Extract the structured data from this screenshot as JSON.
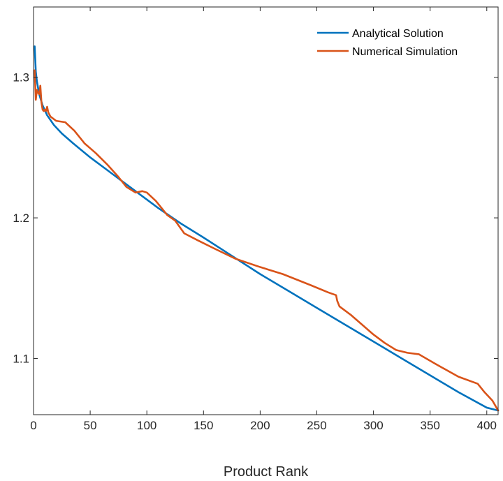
{
  "chart_data": {
    "type": "line",
    "title": "",
    "xlabel": "Product Rank",
    "ylabel": "",
    "xlim": [
      0,
      410
    ],
    "ylim": [
      1.06,
      1.35
    ],
    "x_ticks": [
      0,
      50,
      100,
      150,
      200,
      250,
      300,
      350,
      400
    ],
    "x_tick_labels": [
      "0",
      "50",
      "100",
      "150",
      "200",
      "250",
      "300",
      "350",
      "400"
    ],
    "y_ticks": [
      1.1,
      1.2,
      1.3
    ],
    "y_tick_labels": [
      "1.1",
      "1.2",
      "1.3"
    ],
    "grid": false,
    "legend_position": "top-right",
    "series": [
      {
        "name": "Analytical Solution",
        "color": "#0072BD",
        "x": [
          1,
          2,
          3,
          5,
          8,
          12,
          18,
          25,
          35,
          50,
          70,
          90,
          110,
          130,
          150,
          175,
          200,
          225,
          250,
          275,
          300,
          325,
          350,
          375,
          400,
          410
        ],
        "y": [
          1.322,
          1.304,
          1.297,
          1.288,
          1.28,
          1.273,
          1.266,
          1.26,
          1.253,
          1.243,
          1.231,
          1.219,
          1.207,
          1.196,
          1.186,
          1.173,
          1.16,
          1.148,
          1.136,
          1.124,
          1.112,
          1.1,
          1.088,
          1.076,
          1.065,
          1.063
        ]
      },
      {
        "name": "Numerical Simulation",
        "color": "#D95319",
        "x": [
          1,
          2,
          3,
          4,
          5,
          6,
          7,
          8,
          9,
          10,
          11,
          12,
          13,
          15,
          20,
          28,
          36,
          45,
          55,
          65,
          75,
          82,
          90,
          96,
          100,
          108,
          118,
          125,
          133,
          145,
          160,
          178,
          200,
          220,
          245,
          260,
          267,
          268,
          270,
          280,
          290,
          300,
          310,
          320,
          330,
          340,
          355,
          375,
          392,
          398,
          405,
          410
        ],
        "y": [
          1.305,
          1.284,
          1.291,
          1.289,
          1.288,
          1.294,
          1.282,
          1.277,
          1.276,
          1.277,
          1.276,
          1.279,
          1.275,
          1.272,
          1.269,
          1.268,
          1.262,
          1.253,
          1.246,
          1.238,
          1.229,
          1.222,
          1.218,
          1.219,
          1.218,
          1.212,
          1.202,
          1.198,
          1.189,
          1.184,
          1.178,
          1.171,
          1.165,
          1.16,
          1.152,
          1.147,
          1.145,
          1.141,
          1.137,
          1.131,
          1.124,
          1.117,
          1.111,
          1.106,
          1.104,
          1.103,
          1.096,
          1.087,
          1.082,
          1.076,
          1.07,
          1.063
        ]
      }
    ]
  }
}
